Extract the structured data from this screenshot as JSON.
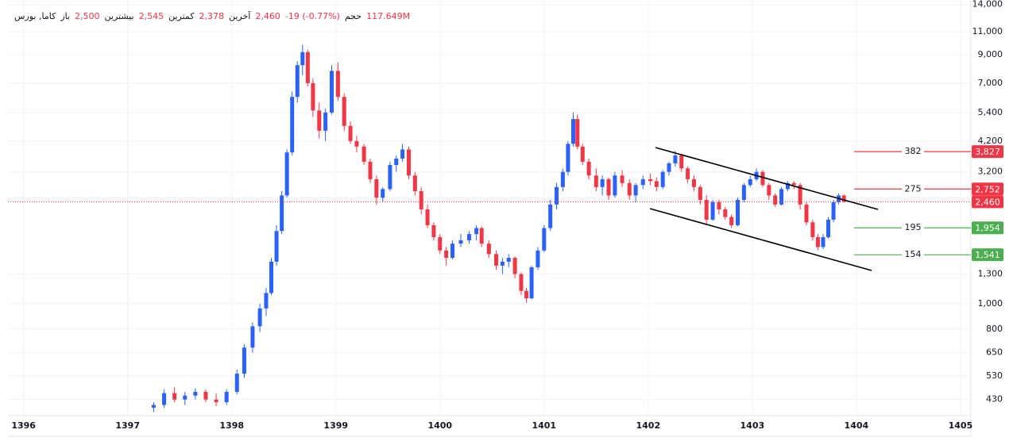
{
  "chart_data": {
    "type": "candlestick",
    "header": {
      "symbol": "کاما, بورس",
      "fields": [
        {
          "label": "باز",
          "value": "2,500"
        },
        {
          "label": "بیشترین",
          "value": "2,545"
        },
        {
          "label": "کمترین",
          "value": "2,378"
        },
        {
          "label": "آخرین",
          "value": "2,460"
        }
      ],
      "change": "-19 (-0.77%)",
      "volume_label": "حجم",
      "volume": "117.649M"
    },
    "log_scale": true,
    "grid": true,
    "up_color": "#2962ff",
    "down_color": "#f23645",
    "xlim": [
      1395.85,
      1405.1
    ],
    "xticks": [
      1396,
      1397,
      1398,
      1399,
      1400,
      1401,
      1402,
      1403,
      1404,
      1405
    ],
    "ylim": [
      373,
      14570
    ],
    "yticks": [
      {
        "value": 14000,
        "label": "14,000"
      },
      {
        "value": 11000,
        "label": "11,000"
      },
      {
        "value": 9000,
        "label": "9,000"
      },
      {
        "value": 7000,
        "label": "7,000"
      },
      {
        "value": 5400,
        "label": "5,400"
      },
      {
        "value": 4200,
        "label": "4,200"
      },
      {
        "value": 3200,
        "label": "3,200"
      },
      {
        "value": 1300,
        "label": "1,300"
      },
      {
        "value": 1000,
        "label": "1,000"
      },
      800,
      650,
      530,
      430
    ],
    "x": [
      1397.25,
      1397.35,
      1397.45,
      1397.55,
      1397.65,
      1397.75,
      1397.85,
      1397.95,
      1398.05,
      1398.12,
      1398.2,
      1398.27,
      1398.33,
      1398.38,
      1398.43,
      1398.48,
      1398.53,
      1398.58,
      1398.63,
      1398.68,
      1398.73,
      1398.78,
      1398.84,
      1398.9,
      1398.96,
      1399.02,
      1399.08,
      1399.14,
      1399.2,
      1399.27,
      1399.33,
      1399.39,
      1399.45,
      1399.52,
      1399.58,
      1399.64,
      1399.7,
      1399.76,
      1399.82,
      1399.88,
      1399.94,
      1400.0,
      1400.06,
      1400.12,
      1400.2,
      1400.28,
      1400.35,
      1400.4,
      1400.47,
      1400.54,
      1400.6,
      1400.66,
      1400.72,
      1400.78,
      1400.83,
      1400.88,
      1400.94,
      1401.0,
      1401.06,
      1401.12,
      1401.18,
      1401.23,
      1401.28,
      1401.32,
      1401.37,
      1401.43,
      1401.5,
      1401.56,
      1401.62,
      1401.68,
      1401.75,
      1401.82,
      1401.88,
      1401.95,
      1402.02,
      1402.08,
      1402.14,
      1402.2,
      1402.26,
      1402.32,
      1402.38,
      1402.44,
      1402.5,
      1402.56,
      1402.62,
      1402.68,
      1402.74,
      1402.8,
      1402.86,
      1402.92,
      1402.98,
      1403.04,
      1403.1,
      1403.16,
      1403.22,
      1403.28,
      1403.34,
      1403.4,
      1403.46,
      1403.52,
      1403.58,
      1403.63,
      1403.68,
      1403.73,
      1403.78,
      1403.83,
      1403.88
    ],
    "open": [
      400,
      410,
      455,
      430,
      445,
      460,
      430,
      420,
      460,
      540,
      680,
      820,
      960,
      1100,
      1450,
      1900,
      2600,
      3800,
      6200,
      8200,
      9200,
      7000,
      5500,
      4600,
      5400,
      7800,
      6200,
      4800,
      4200,
      4000,
      3500,
      3000,
      2550,
      2750,
      3400,
      3600,
      3900,
      3100,
      2700,
      2300,
      2000,
      1800,
      1600,
      1500,
      1700,
      1750,
      1850,
      1950,
      1700,
      1550,
      1400,
      1450,
      1500,
      1300,
      1120,
      1050,
      1380,
      1600,
      1950,
      2400,
      2800,
      3200,
      4100,
      5100,
      4000,
      3500,
      3100,
      2800,
      3000,
      2600,
      3100,
      2900,
      2600,
      2850,
      3000,
      2950,
      2800,
      3200,
      3450,
      3700,
      3300,
      3000,
      2800,
      2500,
      2100,
      2450,
      2300,
      2150,
      2000,
      2500,
      2850,
      3000,
      3200,
      2850,
      2600,
      2400,
      2750,
      2900,
      2850,
      2400,
      2050,
      1800,
      1650,
      1800,
      2100,
      2450,
      2600
    ],
    "high": [
      420,
      470,
      480,
      460,
      475,
      470,
      455,
      470,
      560,
      700,
      850,
      1000,
      1150,
      1500,
      2000,
      2700,
      3900,
      6500,
      8500,
      9800,
      9400,
      7300,
      5900,
      5600,
      8200,
      8400,
      6400,
      5000,
      4400,
      4100,
      3600,
      3100,
      2800,
      3500,
      3700,
      4100,
      4000,
      3200,
      2800,
      2400,
      2050,
      1850,
      1650,
      1750,
      1850,
      1900,
      2000,
      1980,
      1750,
      1600,
      1500,
      1550,
      1520,
      1320,
      1150,
      1400,
      1650,
      2000,
      2500,
      2900,
      3300,
      4200,
      5400,
      5300,
      4100,
      3600,
      3300,
      3100,
      3050,
      3200,
      3250,
      3000,
      2900,
      3100,
      3150,
      3050,
      3250,
      3500,
      3850,
      3750,
      3350,
      3100,
      2850,
      2600,
      2500,
      2500,
      2350,
      2200,
      2550,
      2900,
      3100,
      3300,
      3250,
      2900,
      2650,
      2800,
      2950,
      2950,
      2900,
      2450,
      2100,
      1850,
      1850,
      2150,
      2500,
      2650,
      2620
    ],
    "low": [
      385,
      400,
      420,
      410,
      430,
      420,
      405,
      410,
      450,
      520,
      650,
      780,
      900,
      1080,
      1400,
      1850,
      2550,
      3700,
      5900,
      7500,
      6800,
      5200,
      4300,
      4200,
      5300,
      6000,
      4600,
      4100,
      3800,
      3400,
      2900,
      2400,
      2450,
      2700,
      3200,
      3500,
      3000,
      2600,
      2200,
      1950,
      1750,
      1550,
      1400,
      1480,
      1650,
      1700,
      1750,
      1650,
      1500,
      1350,
      1300,
      1380,
      1250,
      1080,
      1010,
      1040,
      1350,
      1580,
      1900,
      2300,
      2700,
      3100,
      4000,
      3900,
      3400,
      3000,
      2700,
      2600,
      2500,
      2550,
      2800,
      2500,
      2450,
      2750,
      2850,
      2700,
      2750,
      3100,
      3350,
      3200,
      2900,
      2700,
      2400,
      2000,
      2080,
      2200,
      2100,
      1950,
      1980,
      2450,
      2800,
      2950,
      2800,
      2500,
      2350,
      2380,
      2700,
      2750,
      2300,
      2000,
      1750,
      1600,
      1620,
      1780,
      2050,
      2400,
      2440
    ],
    "close": [
      410,
      455,
      430,
      445,
      460,
      430,
      420,
      460,
      540,
      680,
      820,
      960,
      1100,
      1450,
      1900,
      2600,
      3800,
      6200,
      8200,
      9200,
      7000,
      5500,
      4600,
      5400,
      7800,
      6200,
      4800,
      4200,
      4000,
      3500,
      3000,
      2550,
      2750,
      3400,
      3600,
      3900,
      3100,
      2700,
      2300,
      2000,
      1800,
      1600,
      1500,
      1700,
      1750,
      1850,
      1950,
      1700,
      1550,
      1400,
      1450,
      1500,
      1300,
      1120,
      1050,
      1380,
      1600,
      1950,
      2400,
      2800,
      3200,
      4100,
      5100,
      4000,
      3500,
      3100,
      2800,
      3000,
      2600,
      3100,
      2900,
      2600,
      2850,
      3000,
      2950,
      2800,
      3200,
      3450,
      3700,
      3300,
      3000,
      2800,
      2500,
      2100,
      2450,
      2300,
      2150,
      2000,
      2500,
      2850,
      3000,
      3200,
      2850,
      2600,
      2400,
      2750,
      2900,
      2850,
      2400,
      2050,
      1800,
      1650,
      1800,
      2100,
      2450,
      2600,
      2460
    ],
    "last_price": {
      "value": 2460,
      "label": "2,460"
    },
    "levels": [
      {
        "name": "382",
        "value": 3827,
        "value_label": "3,827",
        "color": "#f23645"
      },
      {
        "name": "275",
        "value": 2752,
        "value_label": "2,752",
        "color": "#f23645"
      },
      {
        "name": "195",
        "value": 1954,
        "value_label": "1,954",
        "color": "#4caf50"
      },
      {
        "name": "154",
        "value": 1541,
        "value_label": "1,541",
        "color": "#4caf50"
      }
    ]
  }
}
